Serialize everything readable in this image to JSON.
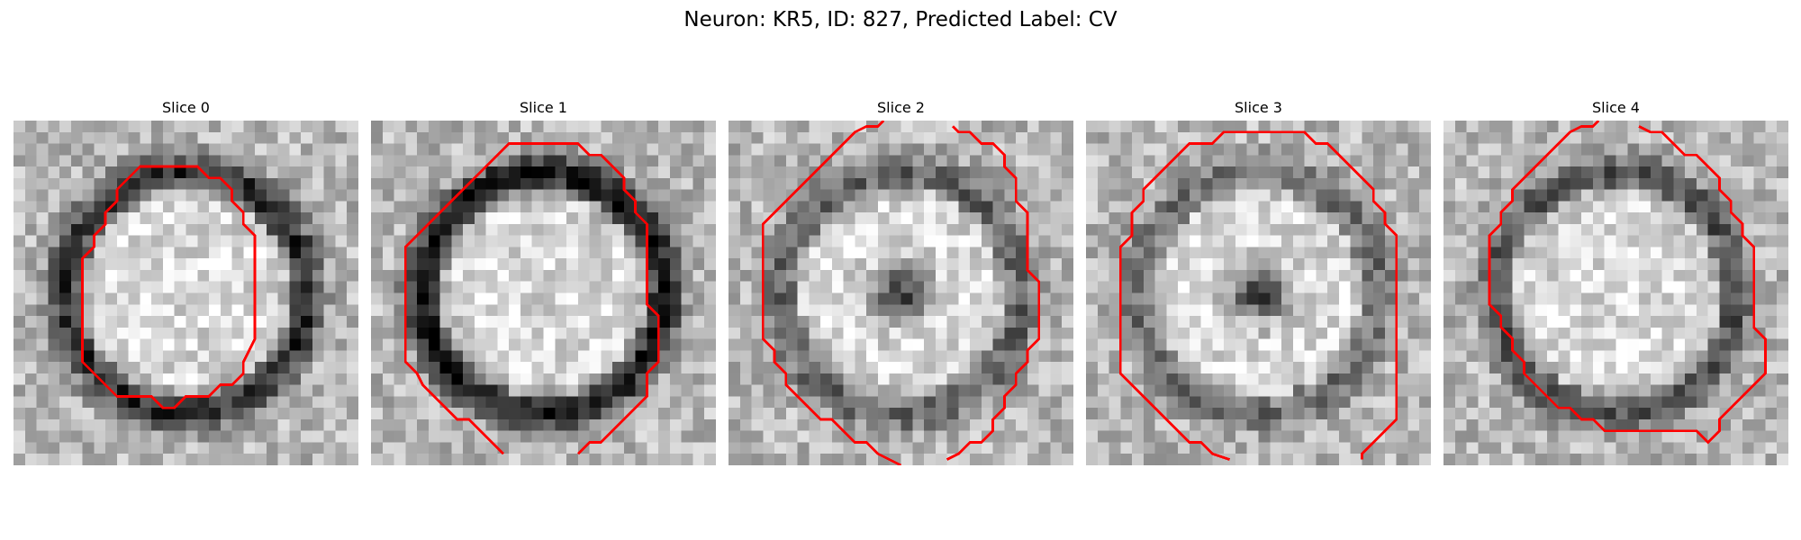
{
  "figure": {
    "suptitle": "Neuron: KR5, ID: 827, Predicted Label: CV"
  },
  "panels": [
    {
      "title": "Slice 0",
      "ring_darkness": 0.55,
      "center_dark_spot": false
    },
    {
      "title": "Slice 1",
      "ring_darkness": 0.65,
      "center_dark_spot": false
    },
    {
      "title": "Slice 2",
      "ring_darkness": 0.35,
      "center_dark_spot": true
    },
    {
      "title": "Slice 3",
      "ring_darkness": 0.3,
      "center_dark_spot": true
    },
    {
      "title": "Slice 4",
      "ring_darkness": 0.4,
      "center_dark_spot": false
    }
  ],
  "colors": {
    "contour": "#ff0000",
    "background": "#ffffff"
  },
  "colormap": "gray"
}
